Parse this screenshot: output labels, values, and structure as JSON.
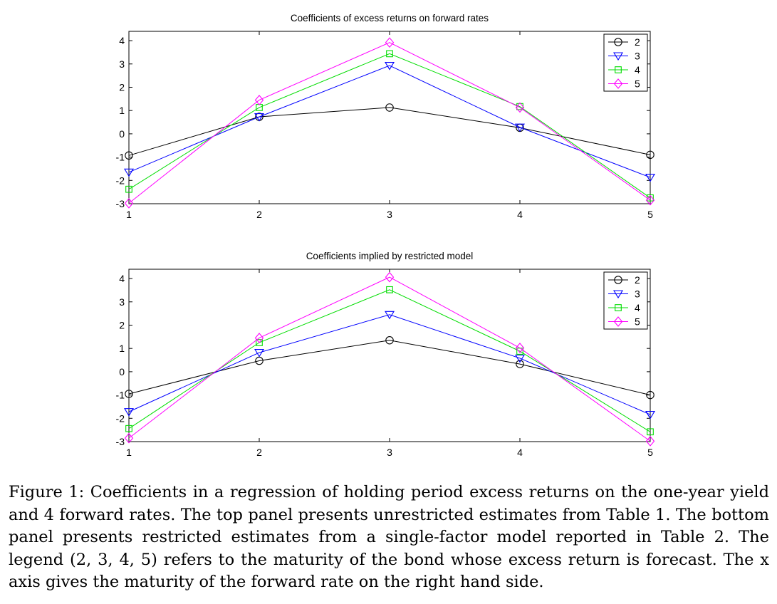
{
  "chart_data": [
    {
      "type": "line",
      "title": "Coefficients of excess returns on forward rates",
      "xlabel": "",
      "ylabel": "",
      "x": [
        1,
        2,
        3,
        4,
        5
      ],
      "xlim": [
        1,
        5
      ],
      "ylim": [
        -3,
        4.4
      ],
      "xticks": [
        "1",
        "2",
        "3",
        "4",
        "5"
      ],
      "yticks": [
        "-3",
        "-2",
        "-1",
        "0",
        "1",
        "2",
        "3",
        "4"
      ],
      "grid": false,
      "legend_position": "top-right",
      "series": [
        {
          "name": "2",
          "color": "#000000",
          "marker": "circle",
          "values": [
            -0.93,
            0.73,
            1.13,
            0.26,
            -0.9
          ]
        },
        {
          "name": "3",
          "color": "#0000ff",
          "marker": "triangle-down",
          "values": [
            -1.65,
            0.73,
            2.93,
            0.28,
            -1.87
          ]
        },
        {
          "name": "4",
          "color": "#00dd00",
          "marker": "square",
          "values": [
            -2.38,
            1.13,
            3.44,
            1.17,
            -2.75
          ]
        },
        {
          "name": "5",
          "color": "#ff00ff",
          "marker": "diamond",
          "values": [
            -2.98,
            1.45,
            3.92,
            1.13,
            -2.85
          ]
        }
      ]
    },
    {
      "type": "line",
      "title": "Coefficients implied by restricted model",
      "xlabel": "",
      "ylabel": "",
      "x": [
        1,
        2,
        3,
        4,
        5
      ],
      "xlim": [
        1,
        5
      ],
      "ylim": [
        -3,
        4.4
      ],
      "xticks": [
        "1",
        "2",
        "3",
        "4",
        "5"
      ],
      "yticks": [
        "-3",
        "-2",
        "-1",
        "0",
        "1",
        "2",
        "3",
        "4"
      ],
      "grid": false,
      "legend_position": "top-right",
      "series": [
        {
          "name": "2",
          "color": "#000000",
          "marker": "circle",
          "values": [
            -0.95,
            0.47,
            1.35,
            0.33,
            -1.0
          ]
        },
        {
          "name": "3",
          "color": "#0000ff",
          "marker": "triangle-down",
          "values": [
            -1.72,
            0.82,
            2.45,
            0.58,
            -1.84
          ]
        },
        {
          "name": "4",
          "color": "#00dd00",
          "marker": "square",
          "values": [
            -2.44,
            1.25,
            3.52,
            0.88,
            -2.58
          ]
        },
        {
          "name": "5",
          "color": "#ff00ff",
          "marker": "diamond",
          "values": [
            -2.85,
            1.45,
            4.06,
            1.02,
            -2.98
          ]
        }
      ]
    }
  ],
  "caption": "Figure 1: Coefficients in a regression of holding period excess returns on the one-year yield and 4 forward rates. The top panel presents unrestricted estimates from Table 1. The bottom panel presents restricted estimates from a single-factor model reported in Table 2. The legend (2, 3, 4, 5) refers to the maturity of the bond whose excess return is forecast. The x axis gives the maturity of the forward rate on the right hand side."
}
